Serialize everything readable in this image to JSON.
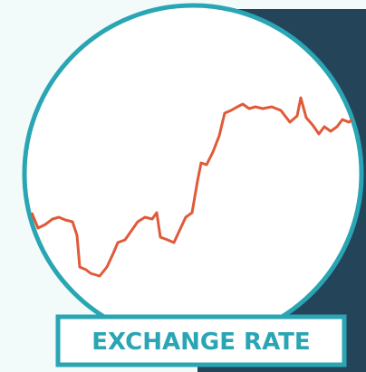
{
  "label": "EXCHANGE RATE"
}
